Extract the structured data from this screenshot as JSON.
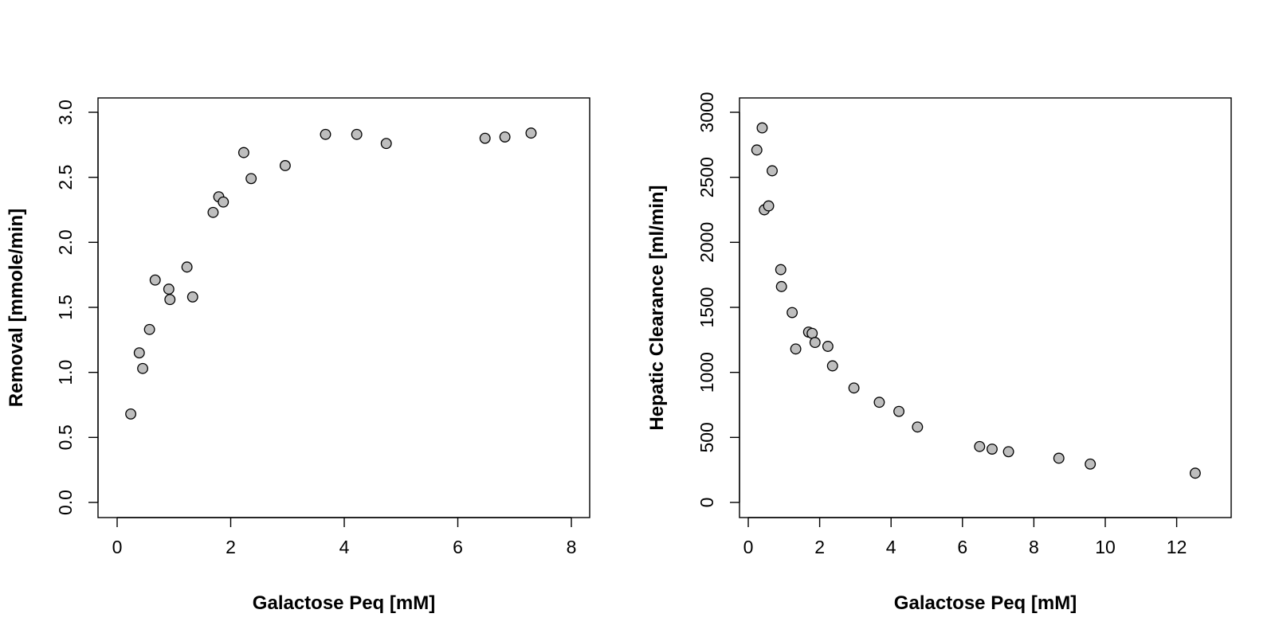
{
  "chart_data": [
    {
      "type": "scatter",
      "xlabel": "Galactose Peq [mM]",
      "ylabel": "Removal [mmole/min]",
      "xlim": [
        0,
        8
      ],
      "ylim": [
        0,
        3
      ],
      "xticks": [
        "0",
        "2",
        "4",
        "6",
        "8"
      ],
      "yticks": [
        "0.0",
        "0.5",
        "1.0",
        "1.5",
        "2.0",
        "2.5",
        "3.0"
      ],
      "grid": false,
      "legend": "none",
      "points": [
        {
          "x": 0.24,
          "y": 0.68
        },
        {
          "x": 0.39,
          "y": 1.15
        },
        {
          "x": 0.45,
          "y": 1.03
        },
        {
          "x": 0.57,
          "y": 1.33
        },
        {
          "x": 0.67,
          "y": 1.71
        },
        {
          "x": 0.91,
          "y": 1.64
        },
        {
          "x": 0.93,
          "y": 1.56
        },
        {
          "x": 1.23,
          "y": 1.81
        },
        {
          "x": 1.33,
          "y": 1.58
        },
        {
          "x": 1.69,
          "y": 2.23
        },
        {
          "x": 1.79,
          "y": 2.35
        },
        {
          "x": 1.87,
          "y": 2.31
        },
        {
          "x": 2.23,
          "y": 2.69
        },
        {
          "x": 2.36,
          "y": 2.49
        },
        {
          "x": 2.96,
          "y": 2.59
        },
        {
          "x": 3.67,
          "y": 2.83
        },
        {
          "x": 4.22,
          "y": 2.83
        },
        {
          "x": 4.74,
          "y": 2.76
        },
        {
          "x": 6.48,
          "y": 2.8
        },
        {
          "x": 6.83,
          "y": 2.81
        },
        {
          "x": 7.29,
          "y": 2.84
        }
      ]
    },
    {
      "type": "scatter",
      "xlabel": "Galactose Peq [mM]",
      "ylabel": "Hepatic Clearance [ml/min]",
      "xlim": [
        0,
        12.5
      ],
      "ylim": [
        0,
        3000
      ],
      "xticks": [
        "0",
        "2",
        "4",
        "6",
        "8",
        "10",
        "12"
      ],
      "yticks": [
        "0",
        "500",
        "1000",
        "1500",
        "2000",
        "2500",
        "3000"
      ],
      "grid": false,
      "legend": "none",
      "points": [
        {
          "x": 0.24,
          "y": 2710
        },
        {
          "x": 0.39,
          "y": 2880
        },
        {
          "x": 0.45,
          "y": 2250
        },
        {
          "x": 0.57,
          "y": 2280
        },
        {
          "x": 0.67,
          "y": 2550
        },
        {
          "x": 0.91,
          "y": 1790
        },
        {
          "x": 0.93,
          "y": 1660
        },
        {
          "x": 1.23,
          "y": 1460
        },
        {
          "x": 1.33,
          "y": 1180
        },
        {
          "x": 1.69,
          "y": 1310
        },
        {
          "x": 1.79,
          "y": 1300
        },
        {
          "x": 1.87,
          "y": 1230
        },
        {
          "x": 2.23,
          "y": 1200
        },
        {
          "x": 2.36,
          "y": 1050
        },
        {
          "x": 2.96,
          "y": 880
        },
        {
          "x": 3.67,
          "y": 770
        },
        {
          "x": 4.22,
          "y": 700
        },
        {
          "x": 4.74,
          "y": 580
        },
        {
          "x": 6.48,
          "y": 430
        },
        {
          "x": 6.83,
          "y": 410
        },
        {
          "x": 7.29,
          "y": 390
        },
        {
          "x": 8.7,
          "y": 340
        },
        {
          "x": 9.58,
          "y": 295
        },
        {
          "x": 12.52,
          "y": 225
        }
      ]
    }
  ]
}
